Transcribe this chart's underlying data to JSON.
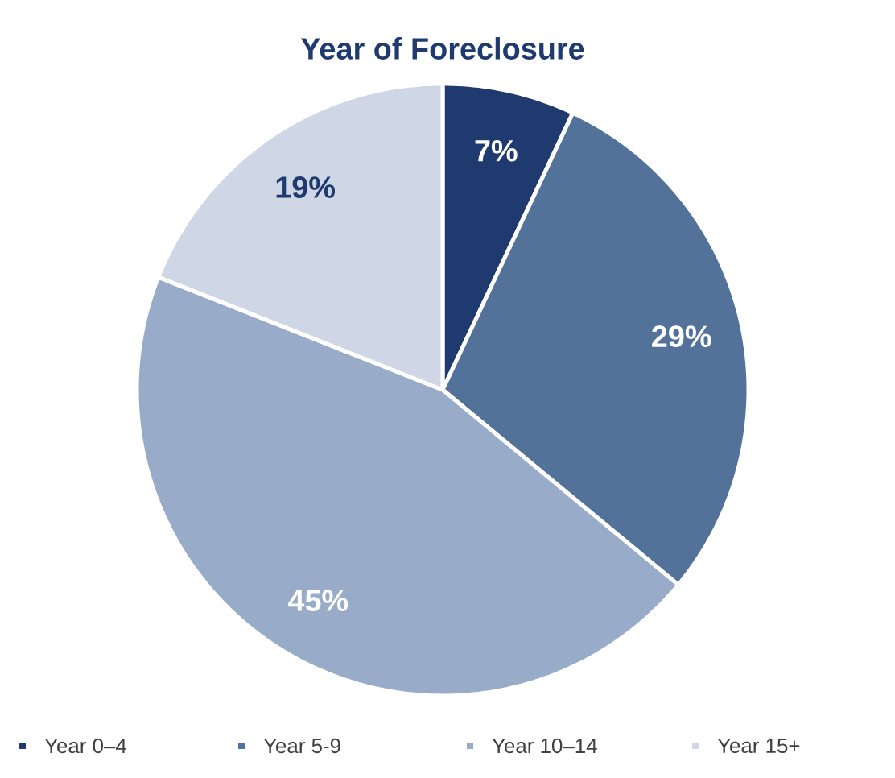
{
  "chart_data": {
    "type": "pie",
    "title": "Year of Foreclosure",
    "categories": [
      "Year 0–4",
      "Year 5-9",
      "Year 10–14",
      "Year 15+"
    ],
    "values": [
      7,
      29,
      45,
      19
    ],
    "colors": [
      "#1f3a6e",
      "#52729a",
      "#98abc8",
      "#cfd7e6"
    ],
    "value_labels": [
      "7%",
      "29%",
      "45%",
      "19%"
    ],
    "legend": "bottom"
  }
}
